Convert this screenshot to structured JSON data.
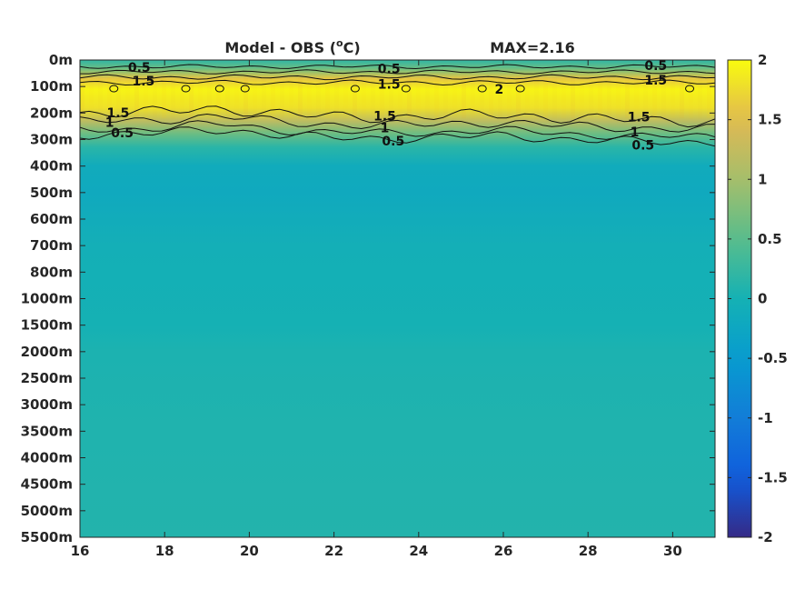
{
  "chart_data": {
    "type": "heatmap",
    "title": "Model - OBS (",
    "title_unit_sup": "o",
    "title_unit_tail": "C)",
    "max_label": "MAX=2.16",
    "x_ticks": [
      "16",
      "18",
      "20",
      "22",
      "24",
      "26",
      "28",
      "30"
    ],
    "x_tick_values": [
      16,
      18,
      20,
      22,
      24,
      26,
      28,
      30
    ],
    "xlim": [
      16,
      31
    ],
    "y_ticks": [
      "0m",
      "100m",
      "200m",
      "300m",
      "400m",
      "500m",
      "600m",
      "700m",
      "800m",
      "1000m",
      "1500m",
      "2000m",
      "2500m",
      "3000m",
      "3500m",
      "4000m",
      "4500m",
      "5000m",
      "5500m"
    ],
    "colorbar": {
      "range": [
        -2,
        2
      ],
      "ticks": [
        "2",
        "1.5",
        "1",
        "0.5",
        "0",
        "-0.5",
        "-1",
        "-1.5",
        "-2"
      ],
      "tick_values": [
        2,
        1.5,
        1,
        0.5,
        0,
        -0.5,
        -1,
        -1.5,
        -2
      ],
      "colormap": "parula"
    },
    "contour_levels": [
      0.5,
      1,
      1.5,
      2
    ],
    "contour_labels": [
      {
        "text": "0.5",
        "x": 17.4,
        "depth_index": 0.28
      },
      {
        "text": "1.5",
        "x": 17.5,
        "depth_index": 0.78
      },
      {
        "text": "0.5",
        "x": 23.3,
        "depth_index": 0.32
      },
      {
        "text": "1.5",
        "x": 23.3,
        "depth_index": 0.9
      },
      {
        "text": "2",
        "x": 25.9,
        "depth_index": 1.1
      },
      {
        "text": "0.5",
        "x": 29.6,
        "depth_index": 0.2
      },
      {
        "text": "1.5",
        "x": 29.6,
        "depth_index": 0.75
      },
      {
        "text": "1.5",
        "x": 16.9,
        "depth_index": 1.98
      },
      {
        "text": "1",
        "x": 16.7,
        "depth_index": 2.35
      },
      {
        "text": "0.5",
        "x": 17.0,
        "depth_index": 2.75
      },
      {
        "text": "1.5",
        "x": 23.2,
        "depth_index": 2.1
      },
      {
        "text": "1",
        "x": 23.2,
        "depth_index": 2.55
      },
      {
        "text": "0.5",
        "x": 23.4,
        "depth_index": 3.05
      },
      {
        "text": "1.5",
        "x": 29.2,
        "depth_index": 2.15
      },
      {
        "text": "1",
        "x": 29.1,
        "depth_index": 2.7
      },
      {
        "text": "0.5",
        "x": 29.3,
        "depth_index": 3.2
      }
    ],
    "depth_profile": [
      {
        "depth_index": 0,
        "value": 0.2
      },
      {
        "depth_index": 0.3,
        "value": 0.6
      },
      {
        "depth_index": 0.7,
        "value": 1.6
      },
      {
        "depth_index": 1.1,
        "value": 1.95
      },
      {
        "depth_index": 1.8,
        "value": 1.8
      },
      {
        "depth_index": 2.3,
        "value": 1.2
      },
      {
        "depth_index": 2.8,
        "value": 0.6
      },
      {
        "depth_index": 3.3,
        "value": 0.15
      },
      {
        "depth_index": 4.0,
        "value": -0.15
      },
      {
        "depth_index": 5.0,
        "value": -0.18
      },
      {
        "depth_index": 7.0,
        "value": -0.05
      },
      {
        "depth_index": 10.0,
        "value": 0.0
      },
      {
        "depth_index": 11.0,
        "value": 0.05
      },
      {
        "depth_index": 14.0,
        "value": 0.08
      },
      {
        "depth_index": 18.0,
        "value": 0.1
      }
    ]
  }
}
